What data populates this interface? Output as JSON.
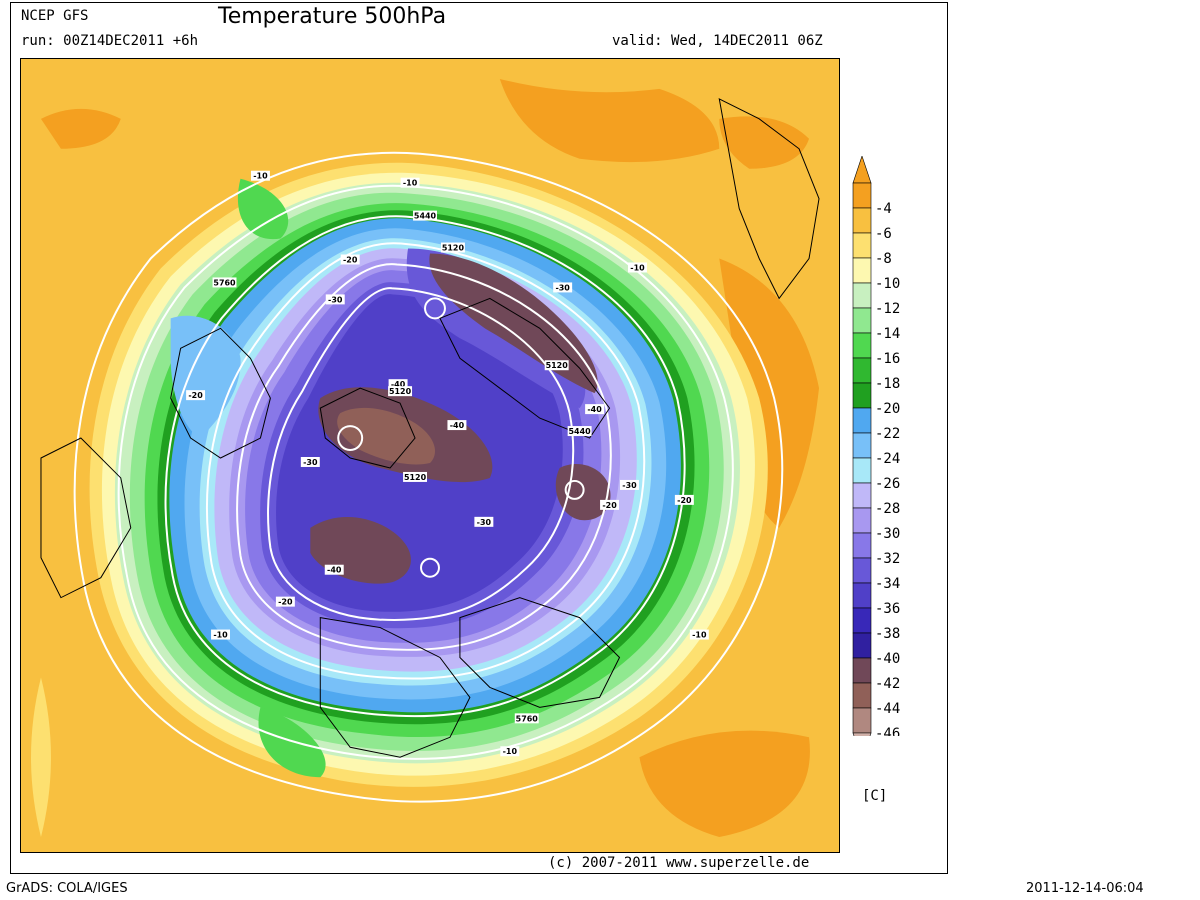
{
  "header": {
    "model": "NCEP GFS",
    "title": "Temperature 500hPa",
    "run": "run: 00Z14DEC2011 +6h",
    "valid": "valid: Wed, 14DEC2011 06Z"
  },
  "footer": {
    "credit": "(c) 2007-2011 www.superzelle.de",
    "software": "GrADS: COLA/IGES",
    "timestamp": "2011-12-14-06:04"
  },
  "legend": {
    "unit": "[C]",
    "levels": [
      {
        "label": "-4",
        "color": "#f4a020"
      },
      {
        "label": "-6",
        "color": "#f8c040"
      },
      {
        "label": "-8",
        "color": "#fde070"
      },
      {
        "label": "-10",
        "color": "#fdf8b0"
      },
      {
        "label": "-12",
        "color": "#c8f0c0"
      },
      {
        "label": "-14",
        "color": "#90e890"
      },
      {
        "label": "-16",
        "color": "#50d850"
      },
      {
        "label": "-18",
        "color": "#30b830"
      },
      {
        "label": "-20",
        "color": "#20a020"
      },
      {
        "label": "-22",
        "color": "#50a8f0"
      },
      {
        "label": "-24",
        "color": "#78c0f8"
      },
      {
        "label": "-26",
        "color": "#a8e8f8"
      },
      {
        "label": "-28",
        "color": "#c0b8f8"
      },
      {
        "label": "-30",
        "color": "#a898f0"
      },
      {
        "label": "-32",
        "color": "#8878e8"
      },
      {
        "label": "-34",
        "color": "#6858d8"
      },
      {
        "label": "-36",
        "color": "#5040c8"
      },
      {
        "label": "-38",
        "color": "#3828b8"
      },
      {
        "label": "-40",
        "color": "#3020a0"
      },
      {
        "label": "-42",
        "color": "#704858"
      },
      {
        "label": "-44",
        "color": "#906058"
      },
      {
        "label": "-46",
        "color": "#b08880"
      }
    ],
    "arrow_top_color": "#f4a020",
    "arrow_bottom_color": "#d0b0a8"
  },
  "map": {
    "contour_labels": [
      {
        "text": "-10"
      },
      {
        "text": "-10"
      },
      {
        "text": "-10"
      },
      {
        "text": "-10"
      },
      {
        "text": "-10"
      },
      {
        "text": "-10"
      },
      {
        "text": "-20"
      },
      {
        "text": "-20"
      },
      {
        "text": "-20"
      },
      {
        "text": "-20"
      },
      {
        "text": "-20"
      },
      {
        "text": "-30"
      },
      {
        "text": "-30"
      },
      {
        "text": "-30"
      },
      {
        "text": "-30"
      },
      {
        "text": "-30"
      },
      {
        "text": "-40"
      },
      {
        "text": "-40"
      },
      {
        "text": "-40"
      },
      {
        "text": "-40"
      },
      {
        "text": "5440"
      },
      {
        "text": "5440"
      },
      {
        "text": "5120"
      },
      {
        "text": "5120"
      },
      {
        "text": "5120"
      },
      {
        "text": "5120"
      },
      {
        "text": "5760"
      },
      {
        "text": "5760"
      }
    ]
  }
}
